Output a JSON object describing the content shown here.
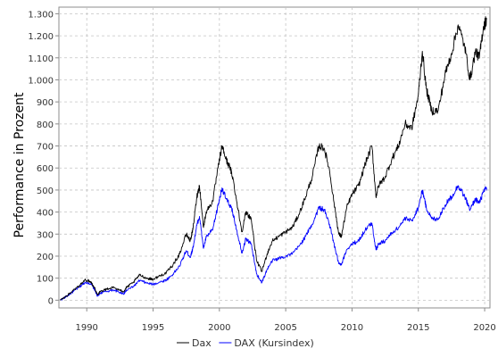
{
  "chart_data": {
    "type": "line",
    "title": "",
    "xlabel": "",
    "ylabel": "Performance in Prozent",
    "xlim": [
      1987.9,
      2020.4
    ],
    "ylim": [
      -35,
      1330
    ],
    "x_ticks": [
      1990,
      1995,
      2000,
      2005,
      2010,
      2015,
      2020
    ],
    "x_tick_labels": [
      "1990",
      "1995",
      "2000",
      "2005",
      "2010",
      "2015",
      "2020"
    ],
    "y_ticks": [
      0,
      100,
      200,
      300,
      400,
      500,
      600,
      700,
      800,
      900,
      1000,
      1100,
      1200,
      1300
    ],
    "y_tick_labels": [
      "0",
      "100",
      "200",
      "300",
      "400",
      "500",
      "600",
      "700",
      "800",
      "900",
      "1.000",
      "1.100",
      "1.200",
      "1.300"
    ],
    "grid": true,
    "legend_position": "bottom-center",
    "series": [
      {
        "name": "Dax",
        "color": "#000000",
        "points": [
          [
            1988.0,
            0
          ],
          [
            1988.5,
            20
          ],
          [
            1989.0,
            45
          ],
          [
            1989.5,
            70
          ],
          [
            1989.9,
            92
          ],
          [
            1990.3,
            85
          ],
          [
            1990.6,
            55
          ],
          [
            1990.8,
            25
          ],
          [
            1991.0,
            40
          ],
          [
            1991.5,
            50
          ],
          [
            1992.0,
            58
          ],
          [
            1992.5,
            45
          ],
          [
            1992.8,
            40
          ],
          [
            1993.0,
            58
          ],
          [
            1993.5,
            80
          ],
          [
            1994.0,
            115
          ],
          [
            1994.5,
            100
          ],
          [
            1995.0,
            95
          ],
          [
            1995.5,
            110
          ],
          [
            1996.0,
            125
          ],
          [
            1996.5,
            160
          ],
          [
            1997.0,
            210
          ],
          [
            1997.5,
            300
          ],
          [
            1997.8,
            270
          ],
          [
            1998.0,
            320
          ],
          [
            1998.3,
            470
          ],
          [
            1998.5,
            520
          ],
          [
            1998.8,
            330
          ],
          [
            1999.0,
            400
          ],
          [
            1999.5,
            450
          ],
          [
            1999.9,
            600
          ],
          [
            2000.2,
            700
          ],
          [
            2000.5,
            640
          ],
          [
            2000.8,
            600
          ],
          [
            2001.0,
            560
          ],
          [
            2001.3,
            450
          ],
          [
            2001.7,
            310
          ],
          [
            2002.0,
            400
          ],
          [
            2002.4,
            370
          ],
          [
            2002.8,
            180
          ],
          [
            2003.2,
            130
          ],
          [
            2003.6,
            210
          ],
          [
            2004.0,
            270
          ],
          [
            2004.5,
            290
          ],
          [
            2005.0,
            310
          ],
          [
            2005.5,
            330
          ],
          [
            2006.0,
            390
          ],
          [
            2006.5,
            470
          ],
          [
            2007.0,
            560
          ],
          [
            2007.5,
            700
          ],
          [
            2007.9,
            690
          ],
          [
            2008.3,
            590
          ],
          [
            2008.7,
            420
          ],
          [
            2009.0,
            300
          ],
          [
            2009.2,
            290
          ],
          [
            2009.6,
            420
          ],
          [
            2010.0,
            480
          ],
          [
            2010.5,
            520
          ],
          [
            2011.0,
            620
          ],
          [
            2011.5,
            700
          ],
          [
            2011.8,
            470
          ],
          [
            2012.0,
            520
          ],
          [
            2012.5,
            560
          ],
          [
            2013.0,
            640
          ],
          [
            2013.5,
            700
          ],
          [
            2014.0,
            800
          ],
          [
            2014.5,
            780
          ],
          [
            2015.0,
            930
          ],
          [
            2015.3,
            1130
          ],
          [
            2015.6,
            960
          ],
          [
            2016.0,
            860
          ],
          [
            2016.5,
            860
          ],
          [
            2017.0,
            1020
          ],
          [
            2017.5,
            1120
          ],
          [
            2018.0,
            1250
          ],
          [
            2018.5,
            1150
          ],
          [
            2018.9,
            1000
          ],
          [
            2019.3,
            1130
          ],
          [
            2019.6,
            1100
          ],
          [
            2019.9,
            1240
          ],
          [
            2020.15,
            1275
          ]
        ]
      },
      {
        "name": "DAX (Kursindex)",
        "color": "#0000ff",
        "points": [
          [
            1988.0,
            0
          ],
          [
            1988.5,
            18
          ],
          [
            1989.0,
            40
          ],
          [
            1989.5,
            62
          ],
          [
            1989.9,
            82
          ],
          [
            1990.3,
            75
          ],
          [
            1990.6,
            48
          ],
          [
            1990.8,
            18
          ],
          [
            1991.0,
            32
          ],
          [
            1991.5,
            40
          ],
          [
            1992.0,
            47
          ],
          [
            1992.5,
            35
          ],
          [
            1992.8,
            30
          ],
          [
            1993.0,
            45
          ],
          [
            1993.5,
            62
          ],
          [
            1994.0,
            90
          ],
          [
            1994.5,
            78
          ],
          [
            1995.0,
            72
          ],
          [
            1995.5,
            82
          ],
          [
            1996.0,
            92
          ],
          [
            1996.5,
            118
          ],
          [
            1997.0,
            155
          ],
          [
            1997.5,
            225
          ],
          [
            1997.8,
            195
          ],
          [
            1998.0,
            235
          ],
          [
            1998.3,
            340
          ],
          [
            1998.5,
            380
          ],
          [
            1998.8,
            235
          ],
          [
            1999.0,
            285
          ],
          [
            1999.5,
            320
          ],
          [
            1999.9,
            430
          ],
          [
            2000.2,
            510
          ],
          [
            2000.5,
            460
          ],
          [
            2000.8,
            430
          ],
          [
            2001.0,
            400
          ],
          [
            2001.3,
            320
          ],
          [
            2001.7,
            215
          ],
          [
            2002.0,
            280
          ],
          [
            2002.4,
            255
          ],
          [
            2002.8,
            120
          ],
          [
            2003.2,
            80
          ],
          [
            2003.6,
            140
          ],
          [
            2004.0,
            180
          ],
          [
            2004.5,
            190
          ],
          [
            2005.0,
            200
          ],
          [
            2005.5,
            210
          ],
          [
            2006.0,
            245
          ],
          [
            2006.5,
            290
          ],
          [
            2007.0,
            345
          ],
          [
            2007.5,
            420
          ],
          [
            2007.9,
            410
          ],
          [
            2008.3,
            345
          ],
          [
            2008.7,
            240
          ],
          [
            2009.0,
            165
          ],
          [
            2009.2,
            160
          ],
          [
            2009.6,
            230
          ],
          [
            2010.0,
            255
          ],
          [
            2010.5,
            270
          ],
          [
            2011.0,
            320
          ],
          [
            2011.5,
            350
          ],
          [
            2011.8,
            230
          ],
          [
            2012.0,
            255
          ],
          [
            2012.5,
            270
          ],
          [
            2013.0,
            305
          ],
          [
            2013.5,
            330
          ],
          [
            2014.0,
            370
          ],
          [
            2014.5,
            360
          ],
          [
            2015.0,
            420
          ],
          [
            2015.3,
            500
          ],
          [
            2015.6,
            420
          ],
          [
            2016.0,
            370
          ],
          [
            2016.5,
            370
          ],
          [
            2017.0,
            430
          ],
          [
            2017.5,
            470
          ],
          [
            2018.0,
            520
          ],
          [
            2018.5,
            470
          ],
          [
            2018.9,
            410
          ],
          [
            2019.3,
            460
          ],
          [
            2019.6,
            440
          ],
          [
            2019.9,
            490
          ],
          [
            2020.15,
            510
          ]
        ]
      }
    ]
  }
}
